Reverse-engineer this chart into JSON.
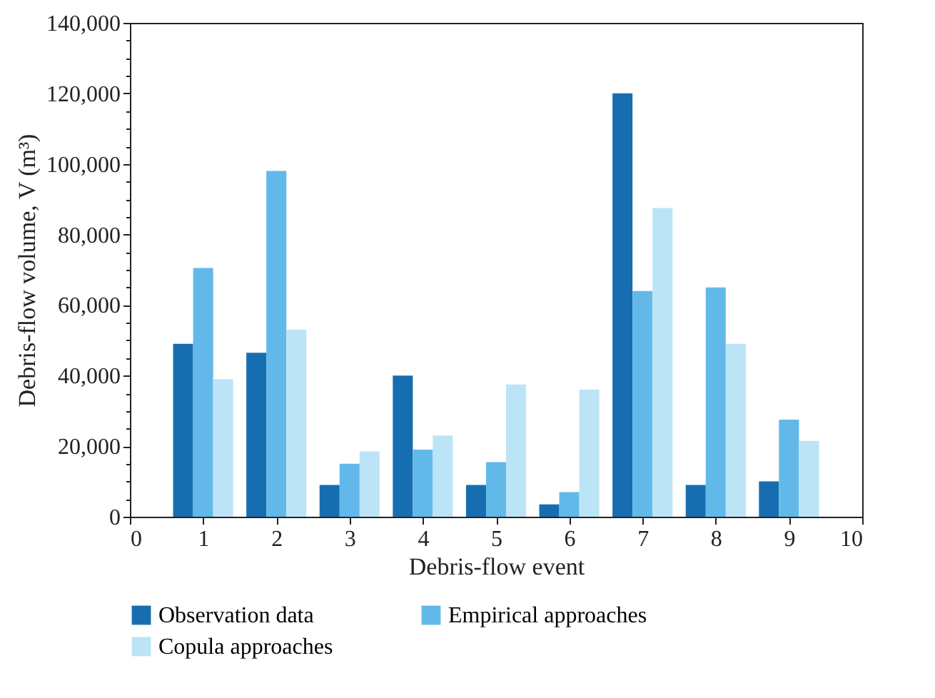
{
  "chart_data": {
    "type": "bar",
    "xlabel": "Debris-flow event",
    "ylabel": "Debris-flow volume, V (m³)",
    "x": [
      1,
      2,
      3,
      4,
      5,
      6,
      7,
      8,
      9
    ],
    "series": [
      {
        "name": "Observation data",
        "color": "#166eb0",
        "values": [
          49000,
          46500,
          9000,
          40000,
          9000,
          3500,
          120000,
          9000,
          10000
        ]
      },
      {
        "name": "Empirical approaches",
        "color": "#62b9e9",
        "values": [
          70500,
          98000,
          15000,
          19000,
          15500,
          7000,
          64000,
          65000,
          27500
        ]
      },
      {
        "name": "Copula approaches",
        "color": "#bce4f7",
        "values": [
          39000,
          53000,
          18500,
          23000,
          37500,
          36000,
          87500,
          49000,
          21500
        ]
      }
    ],
    "xlim": [
      0,
      10
    ],
    "xticks": [
      0,
      1,
      2,
      3,
      4,
      5,
      6,
      7,
      8,
      9,
      10
    ],
    "ylim": [
      0,
      140000
    ],
    "yticks": [
      0,
      {
        "value": 5000,
        "label": null
      },
      {
        "value": 10000,
        "label": null
      },
      {
        "value": 15000,
        "label": null
      },
      {
        "value": 20000,
        "label": "20,000"
      },
      {
        "value": 25000,
        "label": null
      },
      {
        "value": 30000,
        "label": null
      },
      {
        "value": 35000,
        "label": null
      },
      {
        "value": 40000,
        "label": "40,000"
      },
      {
        "value": 45000,
        "label": null
      },
      {
        "value": 50000,
        "label": null
      },
      {
        "value": 55000,
        "label": null
      },
      {
        "value": 60000,
        "label": "60,000"
      },
      {
        "value": 65000,
        "label": null
      },
      {
        "value": 70000,
        "label": null
      },
      {
        "value": 75000,
        "label": null
      },
      {
        "value": 80000,
        "label": "80,000"
      },
      {
        "value": 85000,
        "label": null
      },
      {
        "value": 90000,
        "label": null
      },
      {
        "value": 95000,
        "label": null
      },
      {
        "value": 100000,
        "label": "100,000"
      },
      {
        "value": 105000,
        "label": null
      },
      {
        "value": 110000,
        "label": null
      },
      {
        "value": 115000,
        "label": null
      },
      {
        "value": 120000,
        "label": "120,000"
      },
      {
        "value": 125000,
        "label": null
      },
      {
        "value": 130000,
        "label": null
      },
      {
        "value": 135000,
        "label": null
      },
      {
        "value": 140000,
        "label": "140,000"
      }
    ],
    "grid": false,
    "legend": "bottom"
  }
}
